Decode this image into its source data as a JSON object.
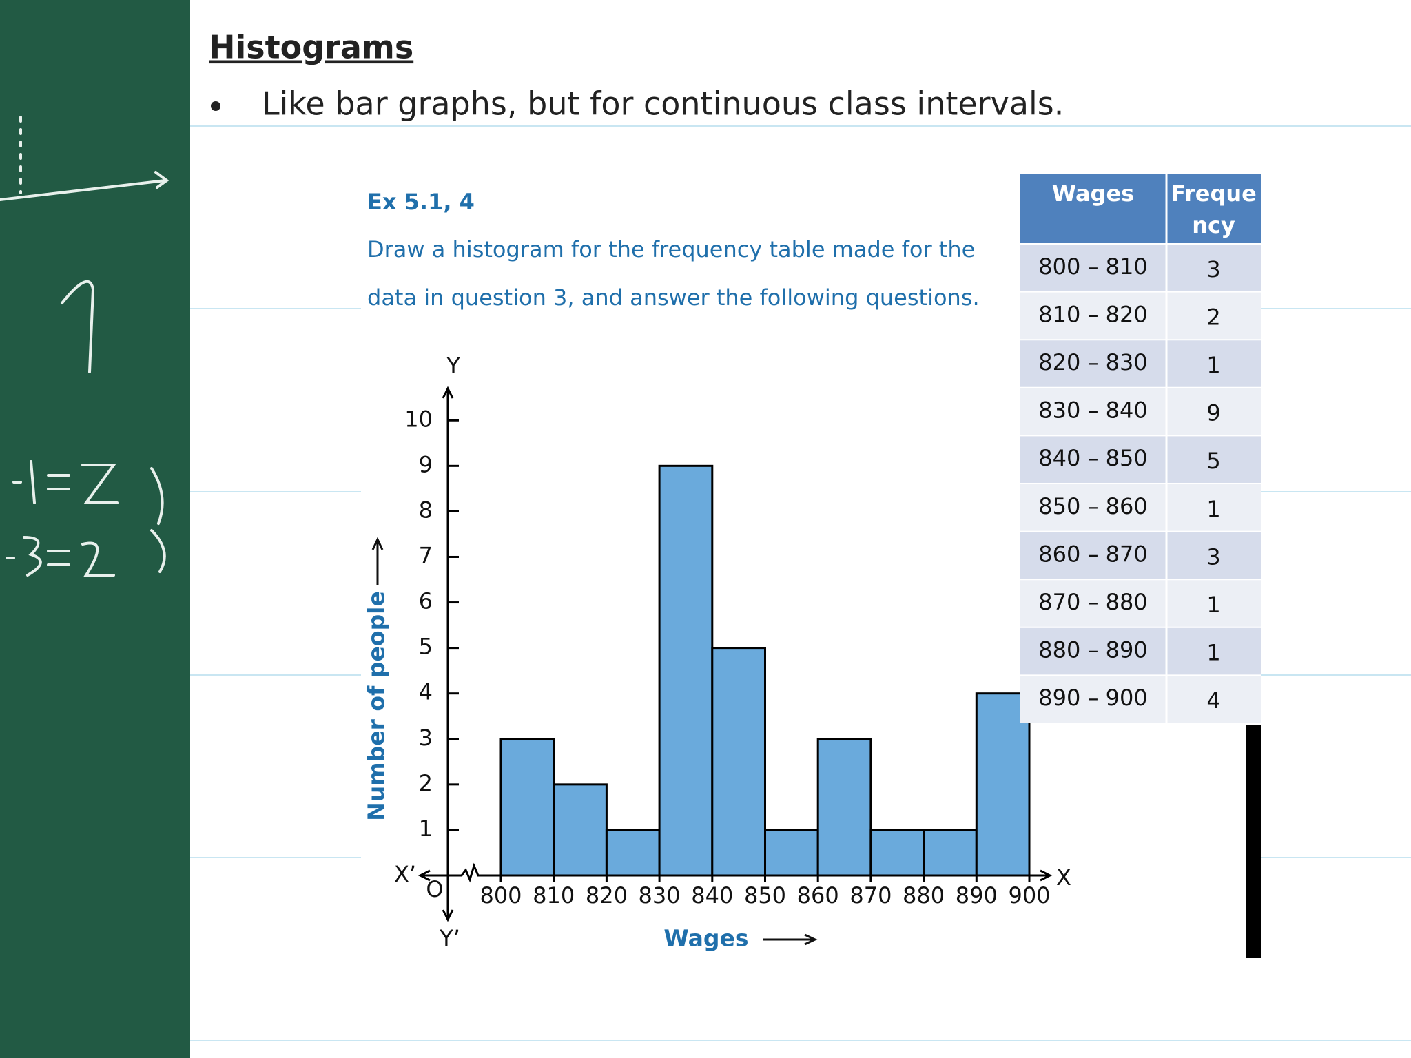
{
  "header": {
    "title": "Histograms",
    "bullet": "Like bar graphs, but for continuous class intervals."
  },
  "exercise": {
    "label": "Ex 5.1, 4",
    "lines": [
      "Draw a histogram for the frequency table made for the",
      "data in question 3, and answer the following questions."
    ]
  },
  "chart_data": {
    "type": "histogram",
    "x_label": "Wages",
    "y_label": "Number of people",
    "axis_labels": {
      "y": "Y",
      "y_neg": "Y’",
      "x": "X",
      "x_neg": "X’",
      "origin": "O"
    },
    "bins": [
      800,
      810,
      820,
      830,
      840,
      850,
      860,
      870,
      880,
      890,
      900
    ],
    "values": [
      3,
      2,
      1,
      9,
      5,
      1,
      3,
      1,
      1,
      4
    ],
    "color": "#6aaadc",
    "xlim": [
      800,
      900
    ],
    "xticks": [
      800,
      810,
      820,
      830,
      840,
      850,
      860,
      870,
      880,
      890,
      900
    ],
    "ylim": [
      0,
      10.7
    ],
    "yticks": [
      1,
      2,
      3,
      4,
      5,
      6,
      7,
      8,
      9,
      10
    ]
  },
  "table": {
    "header": [
      "Wages",
      "Frequency"
    ],
    "rows": [
      [
        "800 – 810",
        "3"
      ],
      [
        "810 – 820",
        "2"
      ],
      [
        "820 – 830",
        "1"
      ],
      [
        "830 – 840",
        "9"
      ],
      [
        "840 – 850",
        "5"
      ],
      [
        "850 – 860",
        "1"
      ],
      [
        "860 – 870",
        "3"
      ],
      [
        "870 – 880",
        "1"
      ],
      [
        "880 – 890",
        "1"
      ],
      [
        "890 – 900",
        "4"
      ]
    ]
  }
}
